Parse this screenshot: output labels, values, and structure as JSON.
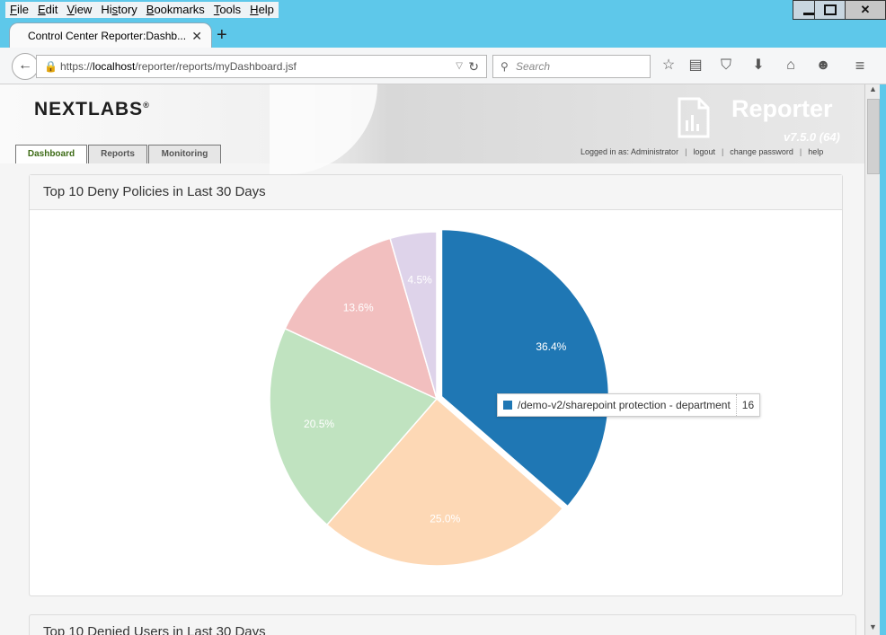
{
  "menu": [
    "File",
    "Edit",
    "View",
    "History",
    "Bookmarks",
    "Tools",
    "Help"
  ],
  "menu_access": [
    "F",
    "E",
    "V",
    "s",
    "B",
    "T",
    "H"
  ],
  "window": {
    "minimize": "▁",
    "maximize": "☐",
    "close": "✕"
  },
  "tab": {
    "title": "Control Center Reporter:Dashb...",
    "close_glyph": "✕",
    "new_tab_glyph": "+"
  },
  "nav": {
    "url_prefix": "https://",
    "url_host": "localhost",
    "url_path": "/reporter/reports/myDashboard.jsf",
    "search_placeholder": "Search"
  },
  "icons": {
    "back": "back-arrow-icon",
    "lock": "lock-icon",
    "search": "search-icon",
    "star": "bookmark-star-icon",
    "reading": "reading-list-icon",
    "pocket": "pocket-icon",
    "download": "download-icon",
    "home": "home-icon",
    "hello": "smiley-icon",
    "menu": "hamburger-menu-icon"
  },
  "header": {
    "logo": "NEXTLABS",
    "logo_mark": "®",
    "product": "Reporter",
    "version": "v7.5.0 (64)",
    "user_label": "Logged in as: Administrator",
    "logout": "logout",
    "change_password": "change password",
    "help": "help",
    "tabs": [
      {
        "label": "Dashboard"
      },
      {
        "label": "Reports"
      },
      {
        "label": "Monitoring"
      }
    ]
  },
  "panel": {
    "title": "Top 10 Deny Policies in Last 30 Days"
  },
  "panel2": {
    "title": "Top 10 Denied Users in Last 30 Days"
  },
  "tooltip": {
    "label": "/demo-v2/sharepoint protection - department",
    "value": "16",
    "color": "#1f77b4"
  },
  "chart_data": {
    "type": "pie",
    "slices": [
      {
        "label": "36.4%",
        "value": 36.4,
        "color": "#1f77b4"
      },
      {
        "label": "25.0%",
        "value": 25.0,
        "color": "#fdd8b5"
      },
      {
        "label": "20.5%",
        "value": 20.5,
        "color": "#c0e3c0"
      },
      {
        "label": "13.6%",
        "value": 13.6,
        "color": "#f2bfbf"
      },
      {
        "label": "4.5%",
        "value": 4.5,
        "color": "#ded3ea"
      }
    ],
    "highlighted_slice": 0
  }
}
